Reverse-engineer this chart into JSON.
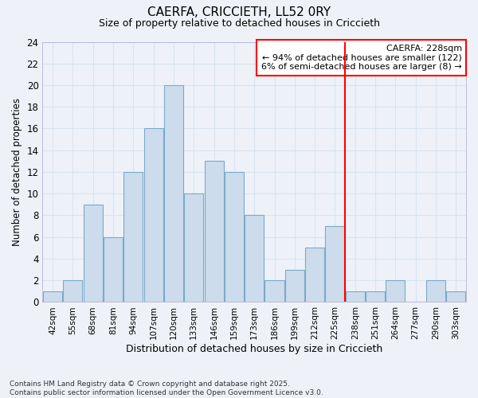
{
  "title": "CAERFA, CRICCIETH, LL52 0RY",
  "subtitle": "Size of property relative to detached houses in Criccieth",
  "xlabel": "Distribution of detached houses by size in Criccieth",
  "ylabel": "Number of detached properties",
  "categories": [
    "42sqm",
    "55sqm",
    "68sqm",
    "81sqm",
    "94sqm",
    "107sqm",
    "120sqm",
    "133sqm",
    "146sqm",
    "159sqm",
    "173sqm",
    "186sqm",
    "199sqm",
    "212sqm",
    "225sqm",
    "238sqm",
    "251sqm",
    "264sqm",
    "277sqm",
    "290sqm",
    "303sqm"
  ],
  "values": [
    1,
    2,
    9,
    6,
    12,
    16,
    20,
    10,
    13,
    12,
    8,
    2,
    3,
    5,
    7,
    1,
    1,
    2,
    0,
    2,
    1
  ],
  "bar_color": "#ccdcec",
  "bar_edgecolor": "#7aaac8",
  "vline_x": 14.5,
  "vline_color": "red",
  "annotation_title": "CAERFA: 228sqm",
  "annotation_line1": "← 94% of detached houses are smaller (122)",
  "annotation_line2": "6% of semi-detached houses are larger (8) →",
  "annotation_box_color": "red",
  "ylim": [
    0,
    24
  ],
  "yticks": [
    0,
    2,
    4,
    6,
    8,
    10,
    12,
    14,
    16,
    18,
    20,
    22,
    24
  ],
  "background_color": "#eef2f8",
  "grid_color": "#d8e4f0",
  "footer_line1": "Contains HM Land Registry data © Crown copyright and database right 2025.",
  "footer_line2": "Contains public sector information licensed under the Open Government Licence v3.0."
}
